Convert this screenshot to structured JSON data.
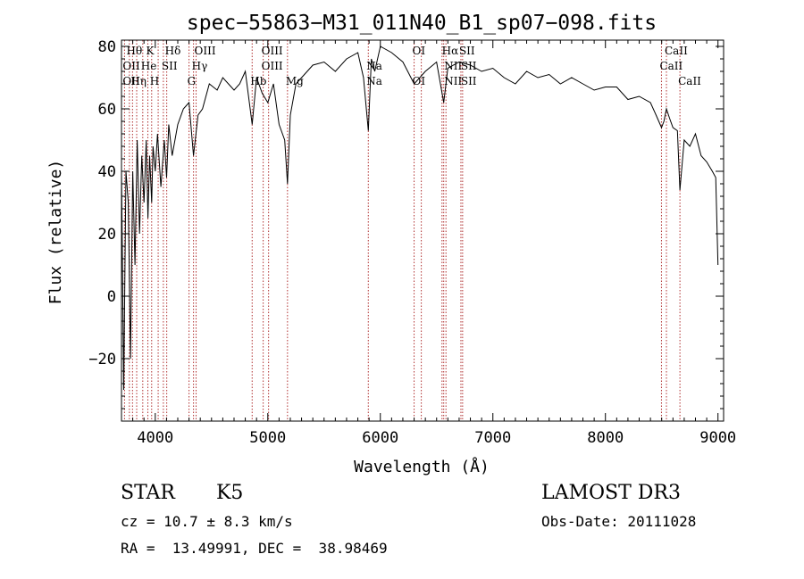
{
  "chart_data": {
    "type": "line",
    "title": "spec−55863−M31_011N40_B1_sp07−098.fits",
    "xlabel": "Wavelength (Å)",
    "ylabel": "Flux (relative)",
    "xlim": [
      3700,
      9050
    ],
    "ylim": [
      -40,
      82
    ],
    "xticks": [
      4000,
      5000,
      6000,
      7000,
      8000,
      9000
    ],
    "xtick_labels": [
      "4000",
      "5000",
      "6000",
      "7000",
      "8000",
      "9000"
    ],
    "yticks": [
      -20,
      0,
      20,
      40,
      60,
      80
    ],
    "ytick_labels": [
      "−20",
      "0",
      "20",
      "40",
      "60",
      "80"
    ],
    "grid": false,
    "series": [
      {
        "name": "spectrum",
        "color": "#000000",
        "x": [
          3700,
          3720,
          3740,
          3760,
          3780,
          3800,
          3820,
          3840,
          3860,
          3880,
          3900,
          3920,
          3935,
          3950,
          3968,
          3980,
          4000,
          4020,
          4050,
          4080,
          4101,
          4120,
          4150,
          4200,
          4250,
          4300,
          4340,
          4380,
          4420,
          4480,
          4550,
          4600,
          4650,
          4700,
          4750,
          4800,
          4861,
          4900,
          4950,
          5000,
          5050,
          5100,
          5150,
          5175,
          5200,
          5250,
          5300,
          5400,
          5500,
          5600,
          5700,
          5800,
          5850,
          5893,
          5920,
          5950,
          6000,
          6100,
          6200,
          6300,
          6350,
          6400,
          6500,
          6563,
          6600,
          6700,
          6800,
          6900,
          7000,
          7100,
          7200,
          7300,
          7400,
          7500,
          7600,
          7700,
          7800,
          7900,
          8000,
          8100,
          8200,
          8300,
          8400,
          8450,
          8498,
          8520,
          8542,
          8570,
          8600,
          8640,
          8662,
          8700,
          8750,
          8800,
          8850,
          8900,
          8950,
          8980,
          9000
        ],
        "values": [
          40,
          -30,
          40,
          30,
          -20,
          40,
          10,
          50,
          20,
          45,
          30,
          50,
          25,
          45,
          30,
          48,
          40,
          52,
          35,
          50,
          38,
          55,
          45,
          55,
          60,
          62,
          45,
          58,
          60,
          68,
          66,
          70,
          68,
          66,
          68,
          72,
          55,
          70,
          65,
          62,
          68,
          55,
          50,
          36,
          58,
          68,
          70,
          74,
          75,
          72,
          76,
          78,
          70,
          53,
          76,
          72,
          80,
          78,
          75,
          68,
          70,
          72,
          75,
          62,
          73,
          75,
          74,
          72,
          73,
          70,
          68,
          72,
          70,
          71,
          68,
          70,
          68,
          66,
          67,
          67,
          63,
          64,
          62,
          58,
          54,
          56,
          60,
          57,
          54,
          53,
          34,
          50,
          48,
          52,
          45,
          43,
          40,
          38,
          10
        ]
      }
    ],
    "line_marks": {
      "color": "#b03030",
      "top_row_labels": [
        "Hθ",
        "K",
        "Hδ",
        "OIII",
        "OIII",
        "OI",
        "Hα",
        "SII",
        "CaII"
      ],
      "middle_row_labels": [
        "OII",
        "He",
        "SII",
        "Hγ",
        "OIII",
        "Na",
        "NII",
        "SII",
        "CaII"
      ],
      "bottom_row_labels": [
        "OII",
        "Hη",
        "H",
        "G",
        "Hb",
        "Mg",
        "Na",
        "OI",
        "NII",
        "SII",
        "CaII"
      ],
      "wavelengths": [
        3727,
        3770,
        3798,
        3835,
        3889,
        3934,
        3968,
        4026,
        4072,
        4102,
        4300,
        4340,
        4363,
        4861,
        4959,
        5007,
        5175,
        5893,
        6300,
        6364,
        6548,
        6563,
        6583,
        6716,
        6731,
        8498,
        8542,
        8662
      ]
    }
  },
  "info": {
    "object_class": "STAR",
    "subclass": "K5",
    "survey": "LAMOST DR3",
    "redshift": "cz = 10.7 ± 8.3 km/s",
    "obs_date": "Obs-Date: 20111028",
    "coords": "RA =  13.49991, DEC =  38.98469"
  }
}
